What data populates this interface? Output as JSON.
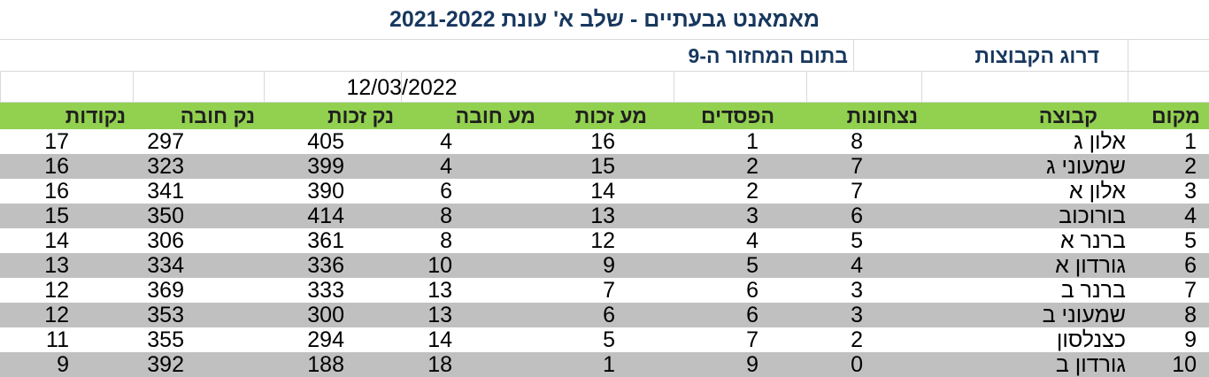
{
  "title": "מאמאנט גבעתיים - שלב א' עונת 2021-2022",
  "subtitle": {
    "left_part": "דרוג הקבוצות",
    "right_part": "בתום המחזור ה-9"
  },
  "date": "12/03/2022",
  "headers": {
    "rank": "מקום",
    "team": "קבוצה",
    "wins": "נצחונות",
    "losses": "הפסדים",
    "sets_for": "מע זכות",
    "sets_against": "מע חובה",
    "points_for": "נק זכות",
    "points_against": "נק חובה",
    "points": "נקודות"
  },
  "colors": {
    "header_bg": "#92d050",
    "stripe_bg": "#c0c0c0",
    "title_color": "#17375e"
  },
  "rows": [
    {
      "rank": "1",
      "team": "אלון ג",
      "wins": "8",
      "losses": "1",
      "sets_for": "16",
      "sets_against": "4",
      "points_for": "405",
      "points_against": "297",
      "points": "17"
    },
    {
      "rank": "2",
      "team": "שמעוני ג",
      "wins": "7",
      "losses": "2",
      "sets_for": "15",
      "sets_against": "4",
      "points_for": "399",
      "points_against": "323",
      "points": "16"
    },
    {
      "rank": "3",
      "team": "אלון א",
      "wins": "7",
      "losses": "2",
      "sets_for": "14",
      "sets_against": "6",
      "points_for": "390",
      "points_against": "341",
      "points": "16"
    },
    {
      "rank": "4",
      "team": "בורוכוב",
      "wins": "6",
      "losses": "3",
      "sets_for": "13",
      "sets_against": "8",
      "points_for": "414",
      "points_against": "350",
      "points": "15"
    },
    {
      "rank": "5",
      "team": "ברנר א",
      "wins": "5",
      "losses": "4",
      "sets_for": "12",
      "sets_against": "8",
      "points_for": "361",
      "points_against": "306",
      "points": "14"
    },
    {
      "rank": "6",
      "team": "גורדון א",
      "wins": "4",
      "losses": "5",
      "sets_for": "9",
      "sets_against": "10",
      "points_for": "336",
      "points_against": "334",
      "points": "13"
    },
    {
      "rank": "7",
      "team": "ברנר ב",
      "wins": "3",
      "losses": "6",
      "sets_for": "7",
      "sets_against": "13",
      "points_for": "333",
      "points_against": "369",
      "points": "12"
    },
    {
      "rank": "8",
      "team": "שמעוני ב",
      "wins": "3",
      "losses": "6",
      "sets_for": "6",
      "sets_against": "13",
      "points_for": "300",
      "points_against": "353",
      "points": "12"
    },
    {
      "rank": "9",
      "team": "כצנלסון",
      "wins": "2",
      "losses": "7",
      "sets_for": "5",
      "sets_against": "14",
      "points_for": "294",
      "points_against": "355",
      "points": "11"
    },
    {
      "rank": "10",
      "team": "גורדון ב",
      "wins": "0",
      "losses": "9",
      "sets_for": "1",
      "sets_against": "18",
      "points_for": "188",
      "points_against": "392",
      "points": "9"
    }
  ]
}
